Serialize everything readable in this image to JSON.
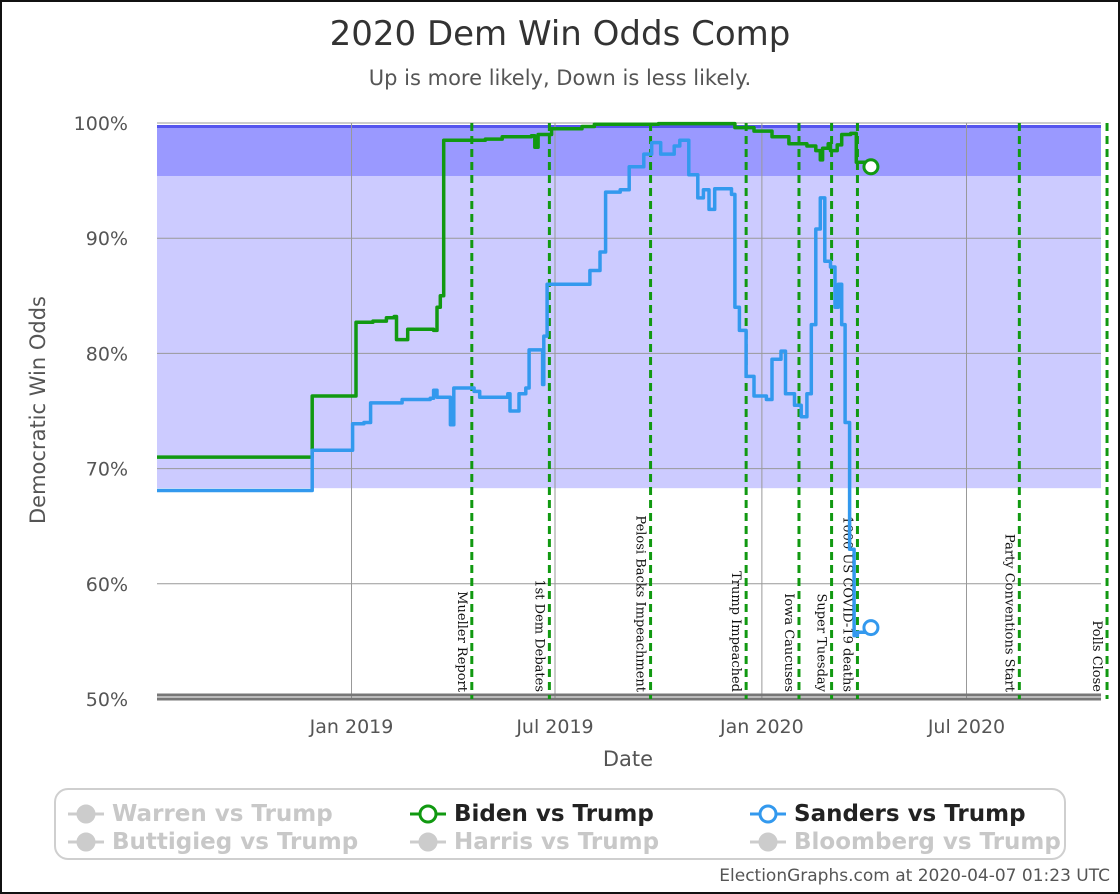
{
  "chart_data": {
    "type": "line",
    "title": "2020 Dem Win Odds Comp",
    "subtitle": "Up is more likely, Down is less likely.",
    "xlabel": "Date",
    "ylabel": "Democratic Win Odds",
    "x_ticks": [
      "Jan 2019",
      "Jul 2019",
      "Jan 2020",
      "Jul 2020"
    ],
    "y_ticks": [
      "50%",
      "60%",
      "70%",
      "80%",
      "90%",
      "100%"
    ],
    "ylim": [
      50,
      100
    ],
    "grid": true,
    "bands": [
      {
        "from": 68.3,
        "to": 95.4,
        "color": "#cccbff"
      },
      {
        "from": 95.4,
        "to": 99.7,
        "color": "#9a99ff"
      }
    ],
    "events": [
      {
        "date": "2019-04-18",
        "label": "Mueller Report"
      },
      {
        "date": "2019-06-26",
        "label": "1st Dem Debates"
      },
      {
        "date": "2019-09-24",
        "label": "Pelosi Backs Impeachment"
      },
      {
        "date": "2019-12-18",
        "label": "Trump Impeached"
      },
      {
        "date": "2020-02-03",
        "label": "Iowa Caucuses"
      },
      {
        "date": "2020-03-03",
        "label": "Super Tuesday"
      },
      {
        "date": "2020-03-26",
        "label": "1000 US COVID-19 deaths"
      },
      {
        "date": "2020-08-17",
        "label": "Party Conventions Start"
      },
      {
        "date": "2020-11-03",
        "label": "Polls Close"
      }
    ],
    "series": [
      {
        "name": "Biden vs Trump",
        "color": "#119911",
        "points": [
          [
            "2018-07-12",
            71.0
          ],
          [
            "2018-11-20",
            71.0
          ],
          [
            "2018-11-25",
            71.0
          ],
          [
            "2018-11-27",
            76.3
          ],
          [
            "2019-01-03",
            76.3
          ],
          [
            "2019-01-05",
            82.7
          ],
          [
            "2019-01-20",
            82.8
          ],
          [
            "2019-02-01",
            83.1
          ],
          [
            "2019-02-08",
            83.2
          ],
          [
            "2019-02-10",
            81.2
          ],
          [
            "2019-02-18",
            81.2
          ],
          [
            "2019-02-20",
            82.1
          ],
          [
            "2019-03-15",
            82.0
          ],
          [
            "2019-03-18",
            84.0
          ],
          [
            "2019-03-21",
            85.0
          ],
          [
            "2019-03-24",
            98.5
          ],
          [
            "2019-04-30",
            98.6
          ],
          [
            "2019-05-15",
            98.8
          ],
          [
            "2019-06-10",
            98.9
          ],
          [
            "2019-06-13",
            97.9
          ],
          [
            "2019-06-16",
            99.0
          ],
          [
            "2019-06-28",
            99.5
          ],
          [
            "2019-07-25",
            99.7
          ],
          [
            "2019-08-05",
            99.9
          ],
          [
            "2019-10-01",
            99.95
          ],
          [
            "2019-11-25",
            99.95
          ],
          [
            "2019-12-08",
            99.6
          ],
          [
            "2019-12-25",
            99.3
          ],
          [
            "2020-01-10",
            98.8
          ],
          [
            "2020-01-25",
            98.2
          ],
          [
            "2020-02-10",
            98.0
          ],
          [
            "2020-02-18",
            97.6
          ],
          [
            "2020-02-22",
            96.8
          ],
          [
            "2020-02-24",
            97.8
          ],
          [
            "2020-02-29",
            98.2
          ],
          [
            "2020-03-02",
            97.6
          ],
          [
            "2020-03-08",
            98.1
          ],
          [
            "2020-03-12",
            99.0
          ],
          [
            "2020-03-20",
            99.1
          ],
          [
            "2020-03-25",
            96.6
          ],
          [
            "2020-04-07",
            96.2
          ]
        ]
      },
      {
        "name": "Sanders vs Trump",
        "color": "#3399ee",
        "points": [
          [
            "2018-07-12",
            68.1
          ],
          [
            "2018-11-25",
            68.1
          ],
          [
            "2018-11-27",
            71.6
          ],
          [
            "2018-12-30",
            71.6
          ],
          [
            "2019-01-02",
            73.9
          ],
          [
            "2019-01-12",
            74.0
          ],
          [
            "2019-01-18",
            75.7
          ],
          [
            "2019-02-05",
            75.7
          ],
          [
            "2019-02-15",
            76.0
          ],
          [
            "2019-03-12",
            76.1
          ],
          [
            "2019-03-15",
            76.8
          ],
          [
            "2019-03-18",
            76.2
          ],
          [
            "2019-03-28",
            76.2
          ],
          [
            "2019-03-30",
            73.8
          ],
          [
            "2019-04-02",
            77.0
          ],
          [
            "2019-04-20",
            76.7
          ],
          [
            "2019-04-25",
            76.2
          ],
          [
            "2019-05-20",
            76.5
          ],
          [
            "2019-05-22",
            75.0
          ],
          [
            "2019-05-28",
            75.0
          ],
          [
            "2019-05-30",
            76.5
          ],
          [
            "2019-06-05",
            77.0
          ],
          [
            "2019-06-08",
            80.3
          ],
          [
            "2019-06-18",
            80.3
          ],
          [
            "2019-06-20",
            77.3
          ],
          [
            "2019-06-21",
            81.5
          ],
          [
            "2019-06-24",
            86.0
          ],
          [
            "2019-07-28",
            86.0
          ],
          [
            "2019-08-01",
            87.2
          ],
          [
            "2019-08-10",
            88.8
          ],
          [
            "2019-08-15",
            94.0
          ],
          [
            "2019-08-28",
            94.2
          ],
          [
            "2019-09-05",
            96.2
          ],
          [
            "2019-09-18",
            97.3
          ],
          [
            "2019-09-25",
            98.3
          ],
          [
            "2019-10-03",
            97.3
          ],
          [
            "2019-10-15",
            98.0
          ],
          [
            "2019-10-20",
            98.5
          ],
          [
            "2019-10-28",
            95.5
          ],
          [
            "2019-11-05",
            93.5
          ],
          [
            "2019-11-10",
            94.2
          ],
          [
            "2019-11-15",
            92.5
          ],
          [
            "2019-11-20",
            94.3
          ],
          [
            "2019-12-05",
            93.8
          ],
          [
            "2019-12-08",
            84.0
          ],
          [
            "2019-12-12",
            82.0
          ],
          [
            "2019-12-18",
            78.0
          ],
          [
            "2019-12-25",
            76.3
          ],
          [
            "2020-01-05",
            76.0
          ],
          [
            "2020-01-10",
            79.5
          ],
          [
            "2020-01-18",
            80.2
          ],
          [
            "2020-01-22",
            76.5
          ],
          [
            "2020-01-30",
            75.5
          ],
          [
            "2020-02-05",
            74.5
          ],
          [
            "2020-02-10",
            76.5
          ],
          [
            "2020-02-14",
            82.5
          ],
          [
            "2020-02-18",
            90.8
          ],
          [
            "2020-02-22",
            93.5
          ],
          [
            "2020-02-26",
            88.0
          ],
          [
            "2020-03-02",
            87.5
          ],
          [
            "2020-03-06",
            84.0
          ],
          [
            "2020-03-09",
            86.0
          ],
          [
            "2020-03-12",
            82.5
          ],
          [
            "2020-03-15",
            74.0
          ],
          [
            "2020-03-19",
            63.0
          ],
          [
            "2020-03-23",
            55.5
          ],
          [
            "2020-03-26",
            55.8
          ],
          [
            "2020-04-07",
            56.2
          ]
        ]
      }
    ]
  },
  "legend": [
    {
      "label": "Warren vs Trump",
      "color": "#cccccc",
      "active": false
    },
    {
      "label": "Biden vs Trump",
      "color": "#119911",
      "active": true
    },
    {
      "label": "Sanders vs Trump",
      "color": "#3399ee",
      "active": true
    },
    {
      "label": "Buttigieg vs Trump",
      "color": "#cccccc",
      "active": false
    },
    {
      "label": "Harris vs Trump",
      "color": "#cccccc",
      "active": false
    },
    {
      "label": "Bloomberg vs Trump",
      "color": "#cccccc",
      "active": false
    }
  ],
  "credit": "ElectionGraphs.com at 2020-04-07 01:23 UTC"
}
